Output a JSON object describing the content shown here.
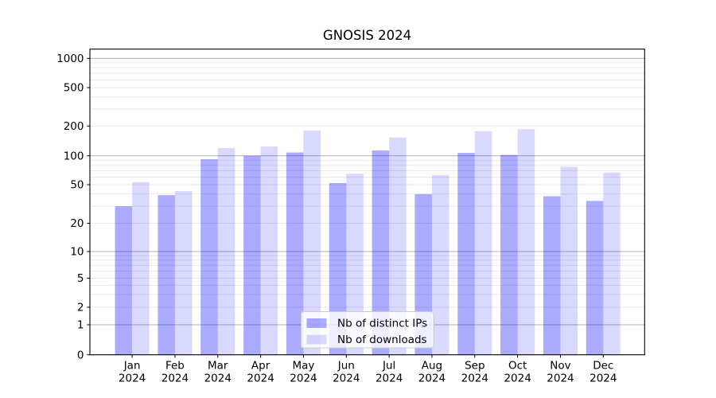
{
  "window": {
    "background": "#ffffff"
  },
  "chart_data": {
    "type": "bar",
    "title": "GNOSIS 2024",
    "categories": [
      "Jan",
      "Feb",
      "Mar",
      "Apr",
      "May",
      "Jun",
      "Jul",
      "Aug",
      "Sep",
      "Oct",
      "Nov",
      "Dec"
    ],
    "category_year": "2024",
    "series": [
      {
        "name": "Nb of distinct IPs",
        "color_rgba": "rgba(0,0,255,0.33)",
        "effective_hex": "#a7a7ff",
        "values": [
          30,
          39,
          92,
          100,
          108,
          52,
          113,
          40,
          107,
          102,
          38,
          34
        ]
      },
      {
        "name": "Nb of downloads",
        "color_rgba": "rgba(0,0,255,0.15)",
        "effective_hex": "#d9d9ff",
        "values": [
          53,
          43,
          120,
          124,
          180,
          65,
          153,
          63,
          177,
          186,
          77,
          67
        ]
      }
    ],
    "xlabel": "",
    "ylabel": "",
    "y_axis": {
      "scale": "symlog",
      "ticks": [
        0,
        1,
        2,
        5,
        10,
        20,
        50,
        100,
        200,
        500,
        1000
      ],
      "ylim": [
        0,
        1300
      ]
    },
    "grid": {
      "enabled": true,
      "major_values": [
        1,
        10,
        100,
        1000
      ],
      "major_color": "#b0b0b0",
      "minor_color": "#e9e9e9"
    },
    "legend": {
      "position": "lower center",
      "entries": [
        "Nb of distinct IPs",
        "Nb of downloads"
      ]
    },
    "axis_color": "#000000"
  }
}
